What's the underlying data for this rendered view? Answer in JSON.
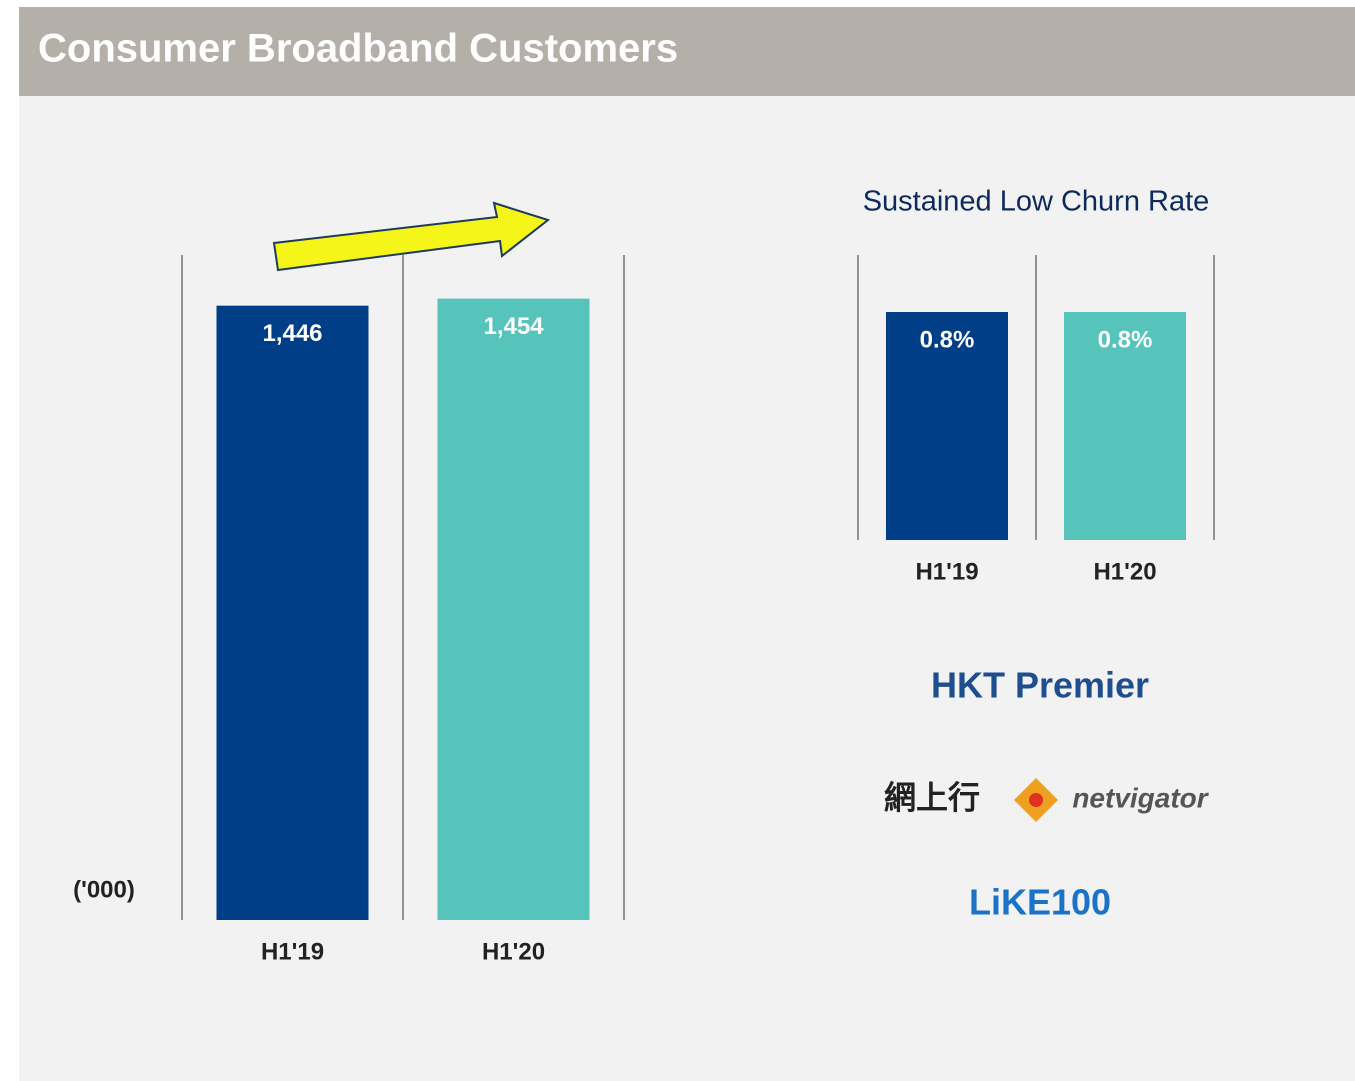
{
  "header": {
    "title": "Consumer Broadband Customers"
  },
  "chart_data": [
    {
      "type": "bar",
      "categories": [
        "H1'19",
        "H1'20"
      ],
      "values": [
        1446,
        1454
      ],
      "value_labels": [
        "1,446",
        "1,454"
      ],
      "colors": [
        "#003f87",
        "#56c4bb"
      ],
      "ylim": [
        750,
        1500
      ],
      "unit_label": "('000)"
    },
    {
      "type": "bar",
      "title": "Sustained Low Churn Rate",
      "categories": [
        "H1'19",
        "H1'20"
      ],
      "values": [
        0.8,
        0.8
      ],
      "value_labels": [
        "0.8%",
        "0.8%"
      ],
      "colors": [
        "#003f87",
        "#56c4bb"
      ],
      "ylim": [
        0,
        1
      ]
    }
  ],
  "logos": [
    "HKT Premier",
    "網上行",
    "netvigator",
    "LiKE100"
  ]
}
